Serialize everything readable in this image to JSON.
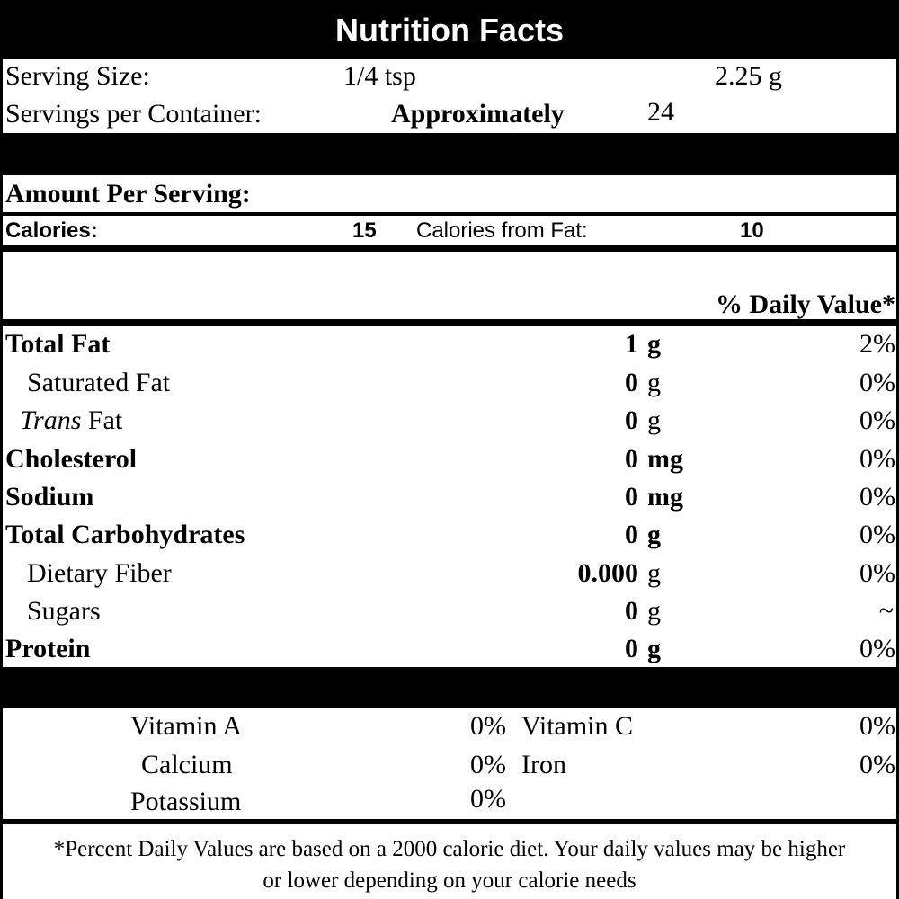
{
  "title": "Nutrition Facts",
  "serving": {
    "size_label": "Serving Size:",
    "size_value": "1/4 tsp",
    "size_grams": "2.25 g",
    "per_container_label": "Servings per Container:",
    "approx_label": "Approximately",
    "per_container_value": "24"
  },
  "amount_per_serving": "Amount Per Serving:",
  "calories": {
    "label": "Calories:",
    "value": "15",
    "fat_label": "Calories from Fat:",
    "fat_value": "10"
  },
  "dv_header": "% Daily Value*",
  "nutrients": [
    {
      "name": "Total Fat",
      "amount": "1",
      "unit": "g",
      "dv": "2%"
    },
    {
      "name": "Saturated Fat",
      "amount": "0",
      "unit": "g",
      "dv": "0%"
    },
    {
      "name_italic": "Trans",
      "name": "Fat",
      "amount": "0",
      "unit": "g",
      "dv": "0%"
    },
    {
      "name": "Cholesterol",
      "amount": "0",
      "unit": "mg",
      "dv": "0%"
    },
    {
      "name": "Sodium",
      "amount": "0",
      "unit": "mg",
      "dv": "0%"
    },
    {
      "name": "Total Carbohydrates",
      "amount": "0",
      "unit": "g",
      "dv": "0%"
    },
    {
      "name": "Dietary Fiber",
      "amount": "0.000",
      "unit": "g",
      "dv": "0%"
    },
    {
      "name": "Sugars",
      "amount": "0",
      "unit": "g",
      "dv": "~"
    },
    {
      "name": "Protein",
      "amount": "0",
      "unit": "g",
      "dv": "0%"
    }
  ],
  "vitamins": [
    {
      "name": "Vitamin A",
      "dv": "0%"
    },
    {
      "name": "Vitamin C",
      "dv": "0%"
    },
    {
      "name": "Calcium",
      "dv": "0%"
    },
    {
      "name": "Iron",
      "dv": "0%"
    },
    {
      "name": "Potassium",
      "dv": "0%"
    }
  ],
  "footnote": {
    "line1": "*Percent Daily Values are based on a 2000 calorie diet. Your daily values may be higher",
    "line2": "or lower depending on your calorie needs"
  }
}
